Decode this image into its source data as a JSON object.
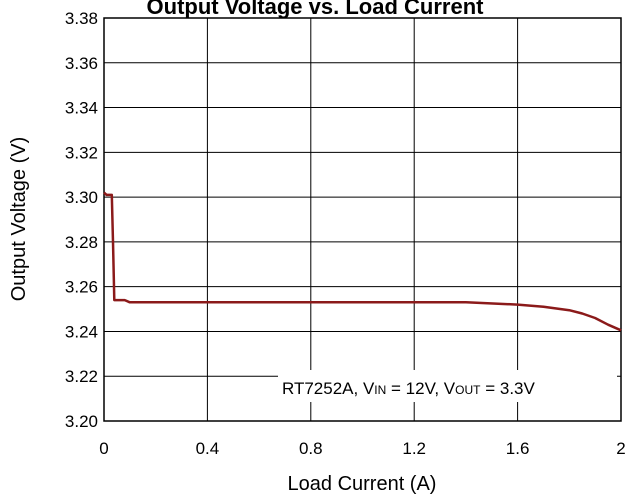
{
  "chart_data": {
    "type": "line",
    "title": "Output Voltage vs. Load Current",
    "xlabel": "Load Current (A)",
    "ylabel": "Output Voltage (V)",
    "xlim": [
      0,
      2
    ],
    "ylim": [
      3.2,
      3.38
    ],
    "x_ticks": [
      "0",
      "0.4",
      "0.8",
      "1.2",
      "1.6",
      "2"
    ],
    "y_ticks": [
      "3.20",
      "3.22",
      "3.24",
      "3.26",
      "3.28",
      "3.30",
      "3.32",
      "3.34",
      "3.36",
      "3.38"
    ],
    "grid": true,
    "annotation": {
      "prefix": "RT7252A, V",
      "sub1": "IN",
      "mid": " = 12V, V",
      "sub2": "OUT",
      "suffix": " = 3.3V"
    },
    "series": [
      {
        "color": "#8b1a1a",
        "x": [
          0,
          0.01,
          0.02,
          0.03,
          0.035,
          0.04,
          0.05,
          0.08,
          0.1,
          0.4,
          0.8,
          1.2,
          1.4,
          1.6,
          1.7,
          1.8,
          1.85,
          1.9,
          1.95,
          2.0
        ],
        "y": [
          3.302,
          3.301,
          3.301,
          3.301,
          3.28,
          3.254,
          3.254,
          3.254,
          3.253,
          3.253,
          3.253,
          3.253,
          3.253,
          3.252,
          3.251,
          3.2495,
          3.248,
          3.246,
          3.243,
          3.2405
        ]
      }
    ]
  }
}
